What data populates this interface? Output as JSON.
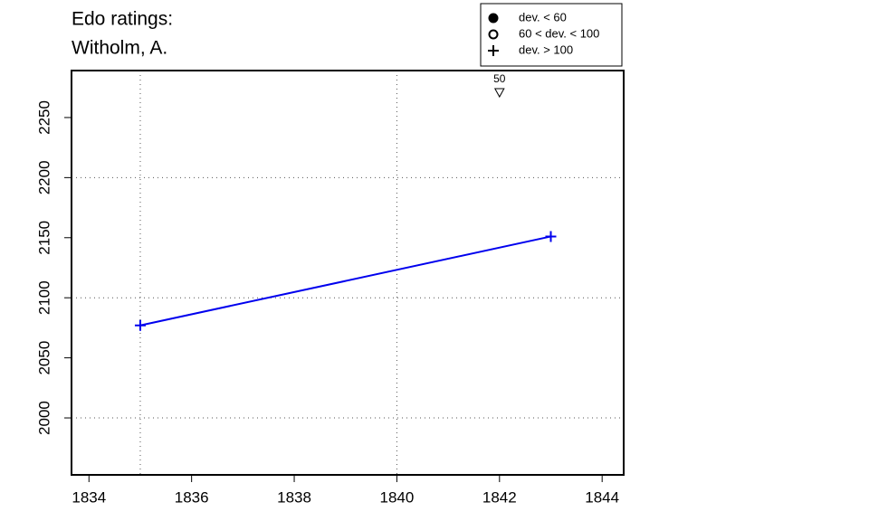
{
  "chart_data": {
    "type": "line",
    "title_lines": [
      "Edo ratings:",
      "Witholm, A."
    ],
    "x": [
      1835,
      1843
    ],
    "series": [
      {
        "color": "#0000ee",
        "marker": "plus",
        "values": [
          2077,
          2151
        ]
      }
    ],
    "xlim": [
      1833.66,
      1844.42
    ],
    "ylim": [
      1952.6,
      2289.1
    ],
    "xticks": [
      1834,
      1836,
      1838,
      1840,
      1842,
      1844
    ],
    "yticks": [
      2000,
      2050,
      2100,
      2150,
      2200,
      2250
    ],
    "xgrid": [
      1835,
      1840
    ],
    "ygrid": [
      2000,
      2100,
      2200
    ],
    "annotations": [
      {
        "x": 1842,
        "y": 2271,
        "label": "50",
        "marker": "down-triangle"
      }
    ],
    "legend": [
      {
        "label": "dev. < 60",
        "symbol": "filled-circle"
      },
      {
        "label": "60 < dev. < 100",
        "symbol": "open-circle"
      },
      {
        "label": "dev. > 100",
        "symbol": "plus"
      }
    ],
    "legend_position": "top-right"
  }
}
